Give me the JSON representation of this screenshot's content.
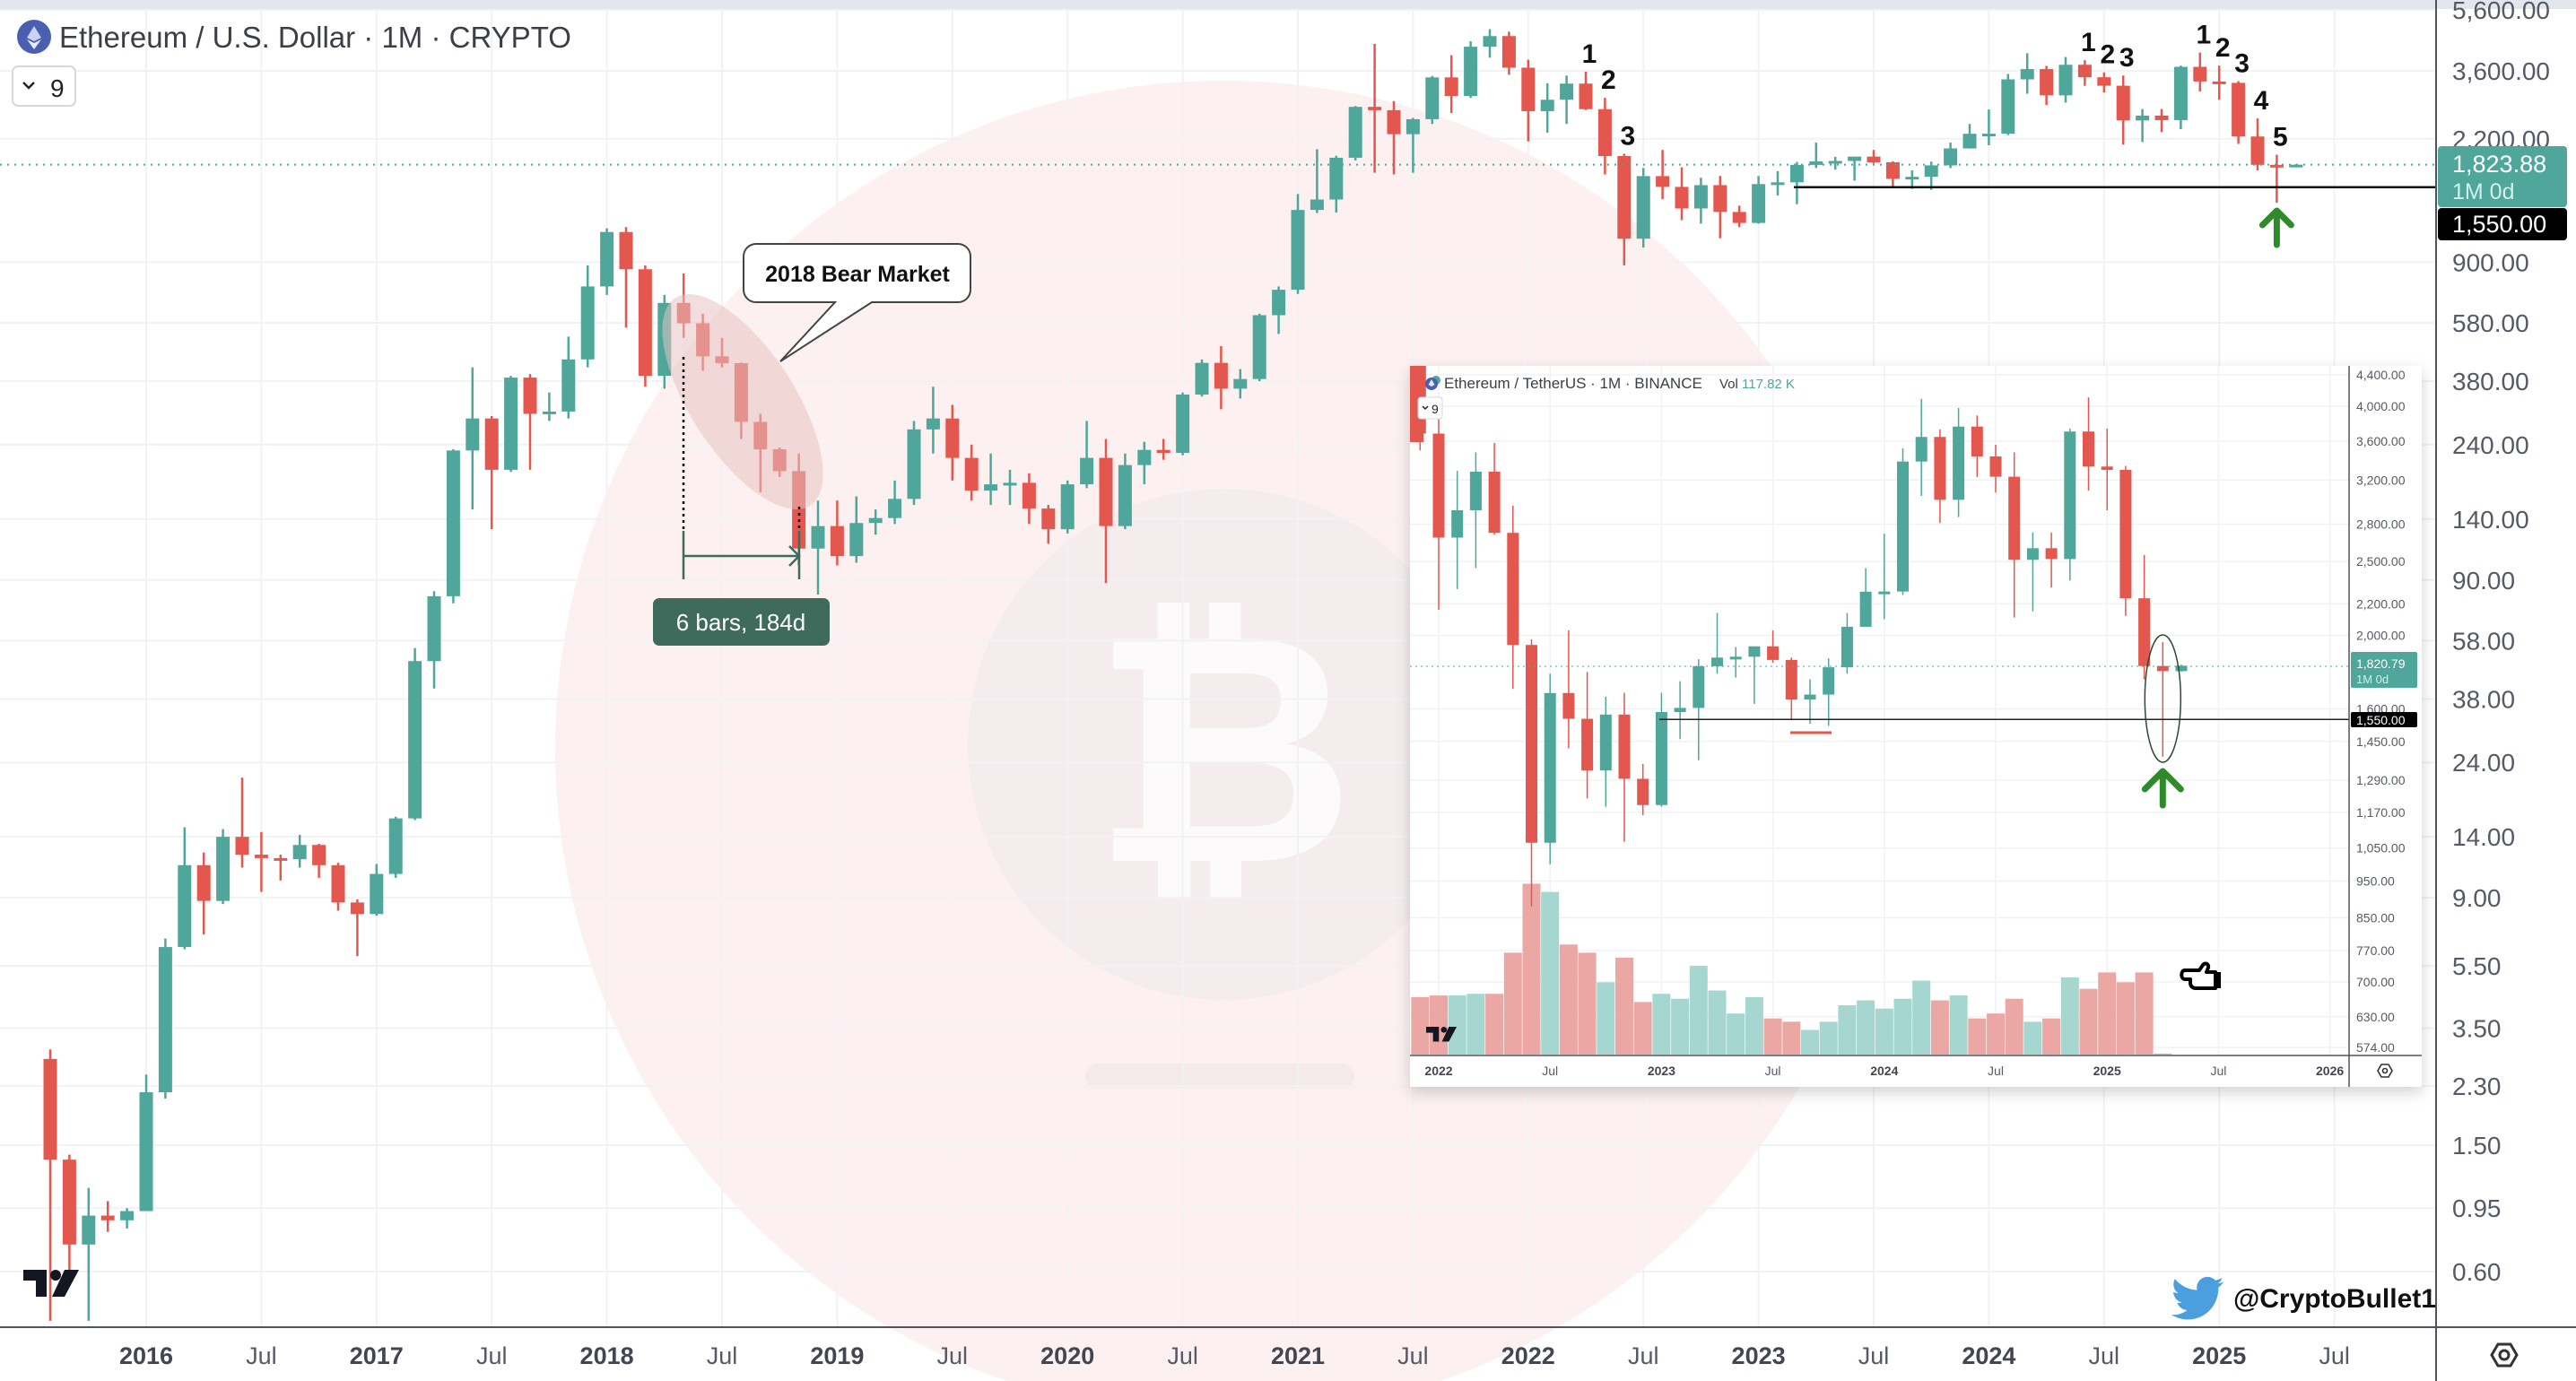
{
  "main_chart": {
    "title": "Ethereum / U.S. Dollar · 1M · CRYPTO",
    "indicator_toggle": "9",
    "last_price": "1,823.88",
    "last_price_value": 1823.88,
    "countdown": "1M 0d",
    "level_label": "1,550.00",
    "level_value": 1550,
    "colors": {
      "up": "#4fa69a",
      "down": "#e3574e",
      "level": "#111111",
      "arrow": "#2f8a2a",
      "measure": "#3e6b5c"
    },
    "y_axis": [
      {
        "label": "5,600.00",
        "value": 5600
      },
      {
        "label": "3,600.00",
        "value": 3600
      },
      {
        "label": "2,200.00",
        "value": 2200
      },
      {
        "label": "900.00",
        "value": 900
      },
      {
        "label": "580.00",
        "value": 580
      },
      {
        "label": "380.00",
        "value": 380
      },
      {
        "label": "240.00",
        "value": 240
      },
      {
        "label": "140.00",
        "value": 140
      },
      {
        "label": "90.00",
        "value": 90
      },
      {
        "label": "58.00",
        "value": 58
      },
      {
        "label": "38.00",
        "value": 38
      },
      {
        "label": "24.00",
        "value": 24
      },
      {
        "label": "14.00",
        "value": 14
      },
      {
        "label": "9.00",
        "value": 9
      },
      {
        "label": "5.50",
        "value": 5.5
      },
      {
        "label": "3.50",
        "value": 3.5
      },
      {
        "label": "2.30",
        "value": 2.3
      },
      {
        "label": "1.50",
        "value": 1.5
      },
      {
        "label": "0.95",
        "value": 0.95
      },
      {
        "label": "0.60",
        "value": 0.6
      }
    ],
    "x_axis": [
      {
        "label": "2016",
        "date": "2016-01",
        "year": true
      },
      {
        "label": "Jul",
        "date": "2016-07"
      },
      {
        "label": "2017",
        "date": "2017-01",
        "year": true
      },
      {
        "label": "Jul",
        "date": "2017-07"
      },
      {
        "label": "2018",
        "date": "2018-01",
        "year": true
      },
      {
        "label": "Jul",
        "date": "2018-07"
      },
      {
        "label": "2019",
        "date": "2019-01",
        "year": true
      },
      {
        "label": "Jul",
        "date": "2019-07"
      },
      {
        "label": "2020",
        "date": "2020-01",
        "year": true
      },
      {
        "label": "Jul",
        "date": "2020-07"
      },
      {
        "label": "2021",
        "date": "2021-01",
        "year": true
      },
      {
        "label": "Jul",
        "date": "2021-07"
      },
      {
        "label": "2022",
        "date": "2022-01",
        "year": true
      },
      {
        "label": "Jul",
        "date": "2022-07"
      },
      {
        "label": "2023",
        "date": "2023-01",
        "year": true
      },
      {
        "label": "Jul",
        "date": "2023-07"
      },
      {
        "label": "2024",
        "date": "2024-01",
        "year": true
      },
      {
        "label": "Jul",
        "date": "2024-07"
      },
      {
        "label": "2025",
        "date": "2025-01",
        "year": true
      },
      {
        "label": "Jul",
        "date": "2025-07"
      }
    ],
    "candles": [
      [
        "2015-08",
        2.8,
        3.0,
        0.42,
        1.35
      ],
      [
        "2015-09",
        1.35,
        1.4,
        0.6,
        0.73
      ],
      [
        "2015-10",
        0.73,
        1.1,
        0.42,
        0.9
      ],
      [
        "2015-11",
        0.9,
        1.0,
        0.8,
        0.87
      ],
      [
        "2015-12",
        0.87,
        0.95,
        0.82,
        0.93
      ],
      [
        "2016-01",
        0.93,
        2.5,
        0.93,
        2.2
      ],
      [
        "2016-02",
        2.2,
        6.7,
        2.1,
        6.3
      ],
      [
        "2016-03",
        6.3,
        15,
        6.2,
        11.4
      ],
      [
        "2016-04",
        11.4,
        12.5,
        6.9,
        8.8
      ],
      [
        "2016-05",
        8.8,
        14.8,
        8.6,
        14.0
      ],
      [
        "2016-06",
        14.0,
        21.5,
        11.2,
        12.3
      ],
      [
        "2016-07",
        12.3,
        14.5,
        9.4,
        12.0
      ],
      [
        "2016-08",
        12.0,
        12.3,
        10.2,
        11.9
      ],
      [
        "2016-09",
        11.9,
        14.2,
        11.2,
        13.2
      ],
      [
        "2016-10",
        13.2,
        13.3,
        10.4,
        11.4
      ],
      [
        "2016-11",
        11.4,
        11.6,
        8.2,
        8.7
      ],
      [
        "2016-12",
        8.7,
        8.9,
        5.9,
        8.0
      ],
      [
        "2017-01",
        8.0,
        11.5,
        7.9,
        10.7
      ],
      [
        "2017-02",
        10.7,
        16.2,
        10.4,
        16.0
      ],
      [
        "2017-03",
        16.0,
        55,
        15.8,
        50
      ],
      [
        "2017-04",
        50,
        83,
        41,
        80
      ],
      [
        "2017-05",
        80,
        232,
        76,
        230
      ],
      [
        "2017-06",
        230,
        420,
        150,
        290
      ],
      [
        "2017-07",
        290,
        295,
        130,
        200
      ],
      [
        "2017-08",
        200,
        395,
        197,
        390
      ],
      [
        "2017-09",
        390,
        400,
        200,
        300
      ],
      [
        "2017-10",
        300,
        350,
        285,
        305
      ],
      [
        "2017-11",
        305,
        525,
        290,
        445
      ],
      [
        "2017-12",
        445,
        880,
        420,
        755
      ],
      [
        "2018-01",
        755,
        1150,
        710,
        1120
      ],
      [
        "2018-02",
        1120,
        1160,
        560,
        855
      ],
      [
        "2018-03",
        855,
        880,
        365,
        395
      ],
      [
        "2018-04",
        395,
        710,
        360,
        670
      ],
      [
        "2018-05",
        670,
        830,
        520,
        578
      ],
      [
        "2018-06",
        578,
        620,
        410,
        455
      ],
      [
        "2018-07",
        455,
        520,
        420,
        433
      ],
      [
        "2018-08",
        433,
        435,
        250,
        283
      ],
      [
        "2018-09",
        283,
        300,
        170,
        232
      ],
      [
        "2018-10",
        232,
        235,
        190,
        198
      ],
      [
        "2018-11",
        198,
        225,
        100,
        113
      ],
      [
        "2018-12",
        113,
        160,
        81,
        133
      ],
      [
        "2019-01",
        133,
        160,
        100,
        107
      ],
      [
        "2019-02",
        107,
        165,
        102,
        136
      ],
      [
        "2019-03",
        136,
        150,
        125,
        141
      ],
      [
        "2019-04",
        141,
        185,
        135,
        162
      ],
      [
        "2019-05",
        162,
        285,
        155,
        268
      ],
      [
        "2019-06",
        268,
        365,
        225,
        290
      ],
      [
        "2019-07",
        290,
        320,
        185,
        218
      ],
      [
        "2019-08",
        218,
        240,
        160,
        172
      ],
      [
        "2019-09",
        172,
        225,
        155,
        180
      ],
      [
        "2019-10",
        180,
        200,
        155,
        182
      ],
      [
        "2019-11",
        182,
        195,
        135,
        151
      ],
      [
        "2019-12",
        151,
        155,
        117,
        130
      ],
      [
        "2020-01",
        130,
        185,
        126,
        180
      ],
      [
        "2020-02",
        180,
        285,
        175,
        218
      ],
      [
        "2020-03",
        218,
        250,
        88,
        133
      ],
      [
        "2020-04",
        133,
        225,
        130,
        207
      ],
      [
        "2020-05",
        207,
        245,
        180,
        231
      ],
      [
        "2020-06",
        231,
        250,
        215,
        226
      ],
      [
        "2020-07",
        226,
        350,
        222,
        345
      ],
      [
        "2020-08",
        345,
        445,
        340,
        434
      ],
      [
        "2020-09",
        434,
        490,
        310,
        360
      ],
      [
        "2020-10",
        360,
        415,
        335,
        386
      ],
      [
        "2020-11",
        386,
        620,
        380,
        613
      ],
      [
        "2020-12",
        613,
        755,
        535,
        737
      ],
      [
        "2021-01",
        737,
        1475,
        715,
        1314
      ],
      [
        "2021-02",
        1314,
        2040,
        1285,
        1417
      ],
      [
        "2021-03",
        1417,
        1945,
        1290,
        1918
      ],
      [
        "2021-04",
        1918,
        2790,
        1880,
        2773
      ],
      [
        "2021-05",
        2773,
        4380,
        1720,
        2707
      ],
      [
        "2021-06",
        2707,
        2890,
        1700,
        2275
      ],
      [
        "2021-07",
        2275,
        2560,
        1720,
        2536
      ],
      [
        "2021-08",
        2536,
        3470,
        2450,
        3433
      ],
      [
        "2021-09",
        3433,
        4030,
        2650,
        3001
      ],
      [
        "2021-10",
        3001,
        4460,
        2960,
        4288
      ],
      [
        "2021-11",
        4288,
        4870,
        3960,
        4631
      ],
      [
        "2021-12",
        4631,
        4780,
        3500,
        3683
      ],
      [
        "2022-01",
        3683,
        3900,
        2160,
        2688
      ],
      [
        "2022-02",
        2688,
        3290,
        2300,
        2920
      ],
      [
        "2022-03",
        2920,
        3480,
        2450,
        3282
      ],
      [
        "2022-04",
        3282,
        3580,
        2710,
        2727
      ],
      [
        "2022-05",
        2727,
        2960,
        1700,
        1942
      ],
      [
        "2022-06",
        1942,
        1975,
        880,
        1067
      ],
      [
        "2022-07",
        1067,
        1780,
        1000,
        1679
      ],
      [
        "2022-08",
        1679,
        2030,
        1420,
        1553
      ],
      [
        "2022-09",
        1553,
        1790,
        1220,
        1328
      ],
      [
        "2022-10",
        1328,
        1660,
        1190,
        1573
      ],
      [
        "2022-11",
        1573,
        1680,
        1070,
        1295
      ],
      [
        "2022-12",
        1295,
        1355,
        1160,
        1196
      ],
      [
        "2023-01",
        1196,
        1680,
        1190,
        1585
      ],
      [
        "2023-02",
        1585,
        1740,
        1460,
        1605
      ],
      [
        "2023-03",
        1605,
        1860,
        1370,
        1821
      ],
      [
        "2023-04",
        1821,
        2140,
        1780,
        1869
      ],
      [
        "2023-05",
        1869,
        1930,
        1760,
        1874
      ],
      [
        "2023-06",
        1874,
        1930,
        1625,
        1934
      ],
      [
        "2023-07",
        1934,
        2030,
        1840,
        1856
      ],
      [
        "2023-08",
        1856,
        1870,
        1550,
        1646
      ],
      [
        "2023-09",
        1646,
        1750,
        1530,
        1671
      ],
      [
        "2023-10",
        1671,
        1865,
        1520,
        1815
      ],
      [
        "2023-11",
        1815,
        2140,
        1780,
        2052
      ],
      [
        "2023-12",
        2052,
        2450,
        2050,
        2282
      ],
      [
        "2024-01",
        2282,
        2720,
        2100,
        2283
      ],
      [
        "2024-02",
        2283,
        3520,
        2260,
        3384
      ],
      [
        "2024-03",
        3384,
        4090,
        3050,
        3646
      ],
      [
        "2024-04",
        3646,
        3730,
        2810,
        3014
      ],
      [
        "2024-05",
        3014,
        3980,
        2860,
        3762
      ],
      [
        "2024-06",
        3762,
        3890,
        3230,
        3437
      ],
      [
        "2024-07",
        3437,
        3560,
        3080,
        3232
      ],
      [
        "2024-08",
        3232,
        3480,
        2110,
        2513
      ],
      [
        "2024-09",
        2513,
        2730,
        2150,
        2603
      ],
      [
        "2024-10",
        2603,
        2730,
        2310,
        2519
      ],
      [
        "2024-11",
        2519,
        3740,
        2360,
        3706
      ],
      [
        "2024-12",
        3706,
        4110,
        3100,
        3333
      ],
      [
        "2025-01",
        3333,
        3740,
        2920,
        3300
      ],
      [
        "2025-02",
        3300,
        3340,
        2120,
        2237
      ],
      [
        "2025-03",
        2237,
        2550,
        1750,
        1822
      ],
      [
        "2025-04",
        1822,
        1960,
        1385,
        1794
      ],
      [
        "2025-05",
        1794,
        1830,
        1790,
        1823.88
      ]
    ],
    "wave_counts": [
      {
        "label": "1",
        "date": "2022-04"
      },
      {
        "label": "2",
        "date": "2022-05"
      },
      {
        "label": "3",
        "date": "2022-06"
      },
      {
        "label": "1",
        "date": "2024-06"
      },
      {
        "label": "2",
        "date": "2024-07"
      },
      {
        "label": "3",
        "date": "2024-08"
      },
      {
        "label": "1",
        "date": "2024-12"
      },
      {
        "label": "2",
        "date": "2025-01"
      },
      {
        "label": "3",
        "date": "2025-02"
      },
      {
        "label": "4",
        "date": "2025-03"
      },
      {
        "label": "5",
        "date": "2025-04"
      }
    ],
    "callout": "2018 Bear Market",
    "measure_label": "6 bars, 184d",
    "watermark_handle": "@CryptoBullet1"
  },
  "inset_chart": {
    "title": "Ethereum / TetherUS · 1M · BINANCE",
    "vol_label": "Vol",
    "vol_value": "117.82 K",
    "indicator_toggle": "9",
    "last_price": "1,820.79",
    "countdown": "1M 0d",
    "level_label": "1,550.00",
    "y_axis": [
      {
        "label": "4,400.00",
        "value": 4400
      },
      {
        "label": "4,000.00",
        "value": 4000
      },
      {
        "label": "3,600.00",
        "value": 3600
      },
      {
        "label": "3,200.00",
        "value": 3200
      },
      {
        "label": "2,800.00",
        "value": 2800
      },
      {
        "label": "2,500.00",
        "value": 2500
      },
      {
        "label": "2,200.00",
        "value": 2200
      },
      {
        "label": "2,000.00",
        "value": 2000
      },
      {
        "label": "1,600.00",
        "value": 1600
      },
      {
        "label": "1,450.00",
        "value": 1450
      },
      {
        "label": "1,290.00",
        "value": 1290
      },
      {
        "label": "1,170.00",
        "value": 1170
      },
      {
        "label": "1,050.00",
        "value": 1050
      },
      {
        "label": "950.00",
        "value": 950
      },
      {
        "label": "850.00",
        "value": 850
      },
      {
        "label": "770.00",
        "value": 770
      },
      {
        "label": "700.00",
        "value": 700
      },
      {
        "label": "630.00",
        "value": 630
      },
      {
        "label": "574.00",
        "value": 574
      }
    ],
    "x_axis": [
      {
        "label": "2022",
        "date": "2022-01",
        "year": true
      },
      {
        "label": "Jul",
        "date": "2022-07"
      },
      {
        "label": "2023",
        "date": "2023-01",
        "year": true
      },
      {
        "label": "Jul",
        "date": "2023-07"
      },
      {
        "label": "2024",
        "date": "2024-01",
        "year": true
      },
      {
        "label": "Jul",
        "date": "2024-07"
      },
      {
        "label": "2025",
        "date": "2025-01",
        "year": true
      },
      {
        "label": "Jul",
        "date": "2025-07"
      },
      {
        "label": "2026",
        "date": "2026-01",
        "year": true
      }
    ],
    "start_date": "2021-12",
    "volume_millions": [
      7.0,
      7.2,
      7.2,
      7.4,
      7.4,
      12.4,
      20.8,
      19.8,
      13.4,
      12.4,
      8.8,
      11.8,
      6.4,
      7.4,
      6.8,
      10.8,
      7.8,
      5.0,
      7.0,
      4.4,
      4.0,
      3.0,
      4.0,
      6.0,
      6.6,
      5.6,
      6.8,
      9.0,
      6.6,
      7.2,
      4.4,
      5.0,
      6.8,
      4.0,
      4.4,
      9.4,
      8.0,
      10.0,
      8.8,
      10.0,
      0.12
    ]
  }
}
